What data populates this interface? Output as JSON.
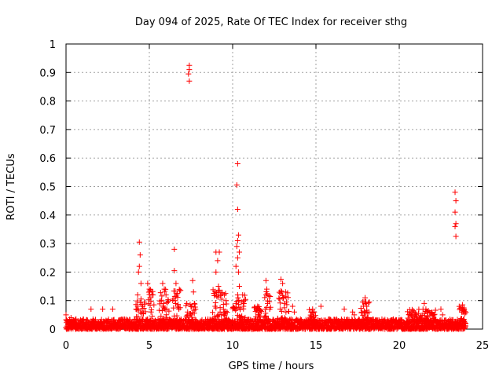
{
  "chart_data": {
    "type": "scatter",
    "title": "Day 094 of 2025, Rate Of TEC Index for receiver sthg",
    "xlabel": "GPS time / hours",
    "ylabel": "ROTI / TECUs",
    "xlim": [
      0,
      25
    ],
    "ylim": [
      0,
      1
    ],
    "xticks": [
      "0",
      "5",
      "10",
      "15",
      "20",
      "25"
    ],
    "yticks": [
      "0",
      "0.1",
      "0.2",
      "0.3",
      "0.4",
      "0.5",
      "0.6",
      "0.7",
      "0.8",
      "0.9",
      "1"
    ],
    "grid": true,
    "marker": "plus",
    "color": "#ff0000",
    "series": [
      {
        "points": [
          [
            4.4,
            0.305
          ],
          [
            4.45,
            0.26
          ],
          [
            4.4,
            0.22
          ],
          [
            4.35,
            0.2
          ],
          [
            4.5,
            0.16
          ],
          [
            4.3,
            0.12
          ],
          [
            4.6,
            0.08
          ],
          [
            4.2,
            0.07
          ],
          [
            4.9,
            0.16
          ],
          [
            5.0,
            0.14
          ],
          [
            5.05,
            0.11
          ],
          [
            4.95,
            0.09
          ],
          [
            5.1,
            0.06
          ],
          [
            5.8,
            0.16
          ],
          [
            5.9,
            0.14
          ],
          [
            6.0,
            0.12
          ],
          [
            5.85,
            0.09
          ],
          [
            6.05,
            0.07
          ],
          [
            6.5,
            0.28
          ],
          [
            6.5,
            0.205
          ],
          [
            6.6,
            0.16
          ],
          [
            6.65,
            0.12
          ],
          [
            6.55,
            0.1
          ],
          [
            6.7,
            0.08
          ],
          [
            7.4,
            0.925
          ],
          [
            7.4,
            0.91
          ],
          [
            7.35,
            0.895
          ],
          [
            7.4,
            0.87
          ],
          [
            7.3,
            0.06
          ],
          [
            7.5,
            0.05
          ],
          [
            7.6,
            0.17
          ],
          [
            7.65,
            0.13
          ],
          [
            7.7,
            0.09
          ],
          [
            7.55,
            0.08
          ],
          [
            9.0,
            0.27
          ],
          [
            9.1,
            0.24
          ],
          [
            9.0,
            0.2
          ],
          [
            9.2,
            0.27
          ],
          [
            9.15,
            0.15
          ],
          [
            9.05,
            0.12
          ],
          [
            8.95,
            0.08
          ],
          [
            9.25,
            0.06
          ],
          [
            9.5,
            0.12
          ],
          [
            9.6,
            0.1
          ],
          [
            9.45,
            0.07
          ],
          [
            10.3,
            0.58
          ],
          [
            10.25,
            0.505
          ],
          [
            10.3,
            0.42
          ],
          [
            10.35,
            0.33
          ],
          [
            10.3,
            0.31
          ],
          [
            10.25,
            0.29
          ],
          [
            10.4,
            0.27
          ],
          [
            10.3,
            0.25
          ],
          [
            10.2,
            0.22
          ],
          [
            10.35,
            0.2
          ],
          [
            10.4,
            0.15
          ],
          [
            10.3,
            0.12
          ],
          [
            10.2,
            0.09
          ],
          [
            10.45,
            0.07
          ],
          [
            10.6,
            0.12
          ],
          [
            10.7,
            0.1
          ],
          [
            10.65,
            0.08
          ],
          [
            11.5,
            0.08
          ],
          [
            11.6,
            0.06
          ],
          [
            11.55,
            0.05
          ],
          [
            12.0,
            0.17
          ],
          [
            12.05,
            0.14
          ],
          [
            12.0,
            0.12
          ],
          [
            12.1,
            0.09
          ],
          [
            11.95,
            0.07
          ],
          [
            12.9,
            0.175
          ],
          [
            13.0,
            0.16
          ],
          [
            12.95,
            0.13
          ],
          [
            13.05,
            0.11
          ],
          [
            13.1,
            0.09
          ],
          [
            12.85,
            0.07
          ],
          [
            13.2,
            0.06
          ],
          [
            13.6,
            0.08
          ],
          [
            13.7,
            0.06
          ],
          [
            14.8,
            0.07
          ],
          [
            14.9,
            0.06
          ],
          [
            15.3,
            0.08
          ],
          [
            16.7,
            0.07
          ],
          [
            17.2,
            0.06
          ],
          [
            17.3,
            0.05
          ],
          [
            17.95,
            0.11
          ],
          [
            18.0,
            0.095
          ],
          [
            18.05,
            0.08
          ],
          [
            17.9,
            0.06
          ],
          [
            19.8,
            0.03
          ],
          [
            20.6,
            0.05
          ],
          [
            20.9,
            0.06
          ],
          [
            21.5,
            0.09
          ],
          [
            21.6,
            0.07
          ],
          [
            21.7,
            0.06
          ],
          [
            22.0,
            0.05
          ],
          [
            22.5,
            0.07
          ],
          [
            22.6,
            0.05
          ],
          [
            23.35,
            0.48
          ],
          [
            23.4,
            0.45
          ],
          [
            23.35,
            0.41
          ],
          [
            23.4,
            0.37
          ],
          [
            23.35,
            0.36
          ],
          [
            23.4,
            0.325
          ],
          [
            23.8,
            0.085
          ],
          [
            23.9,
            0.07
          ],
          [
            23.75,
            0.06
          ],
          [
            0.0,
            0.05
          ],
          [
            0.3,
            0.04
          ],
          [
            0.6,
            0.035
          ],
          [
            1.5,
            0.07
          ],
          [
            2.2,
            0.07
          ],
          [
            2.8,
            0.07
          ],
          [
            3.5,
            0.035
          ]
        ]
      }
    ],
    "baseline": {
      "x_start": 0,
      "x_end": 24,
      "y_min": 0,
      "y_max": 0.035
    }
  }
}
